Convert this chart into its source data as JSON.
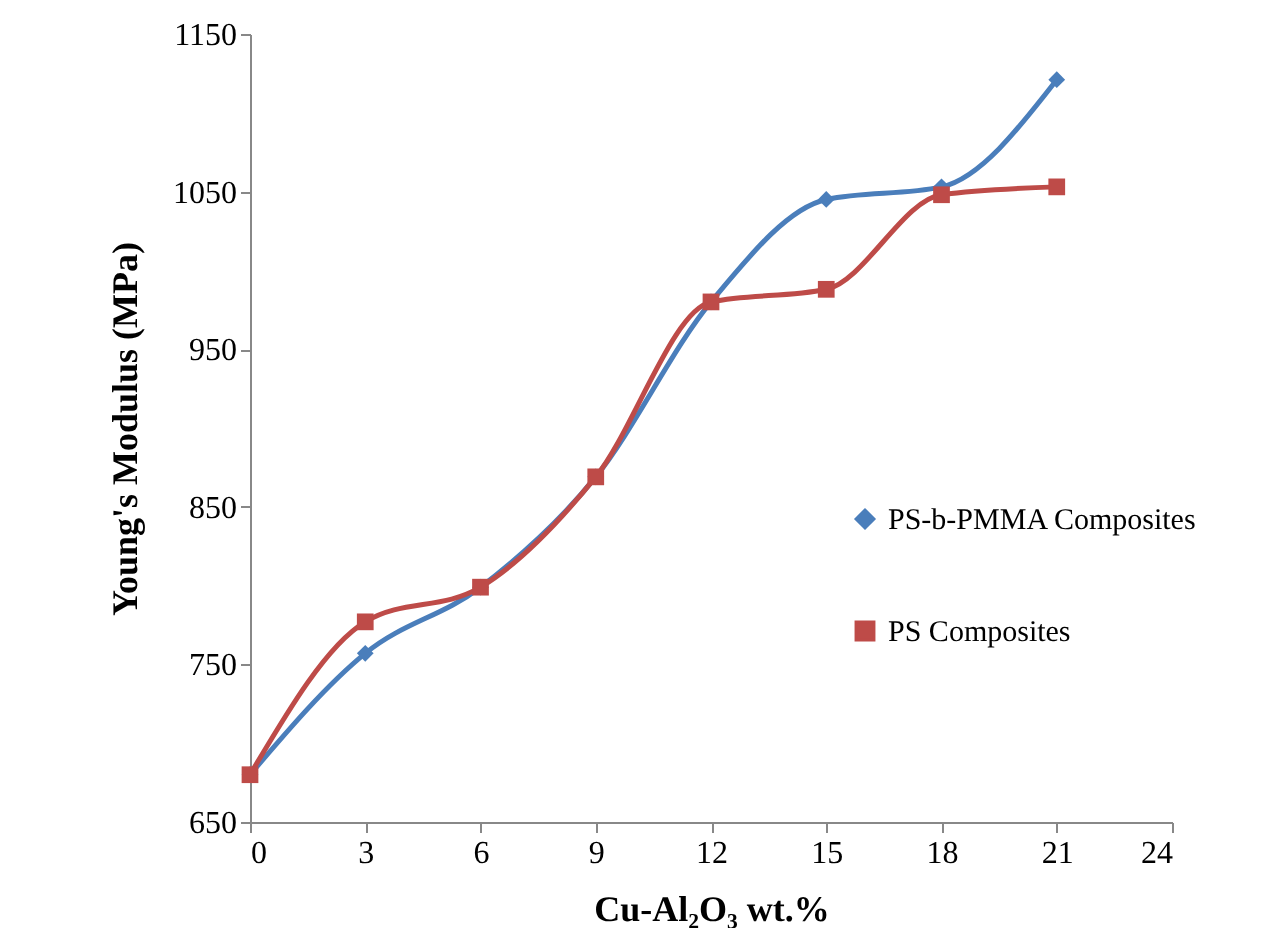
{
  "chart_data": {
    "type": "line",
    "xlabel": "Cu-Al₂O₃  wt.%",
    "ylabel": "Young's Modulus (MPa)",
    "x": [
      0,
      3,
      6,
      9,
      12,
      15,
      18,
      21
    ],
    "series": [
      {
        "name": "PS-b-PMMA Composites",
        "color": "#4a7ebb",
        "marker": "diamond",
        "values": [
          680,
          757,
          799,
          869,
          980,
          1045,
          1053,
          1121
        ]
      },
      {
        "name": "PS Composites",
        "color": "#be4b48",
        "marker": "square",
        "values": [
          680,
          777,
          799,
          869,
          980,
          988,
          1048,
          1053
        ]
      }
    ],
    "xlim": [
      0,
      24
    ],
    "xticks": [
      0,
      3,
      6,
      9,
      12,
      15,
      18,
      21,
      24
    ],
    "ylim": [
      650,
      1150
    ],
    "yticks": [
      650,
      750,
      850,
      950,
      1050,
      1150
    ],
    "grid": false,
    "legend": "right"
  }
}
